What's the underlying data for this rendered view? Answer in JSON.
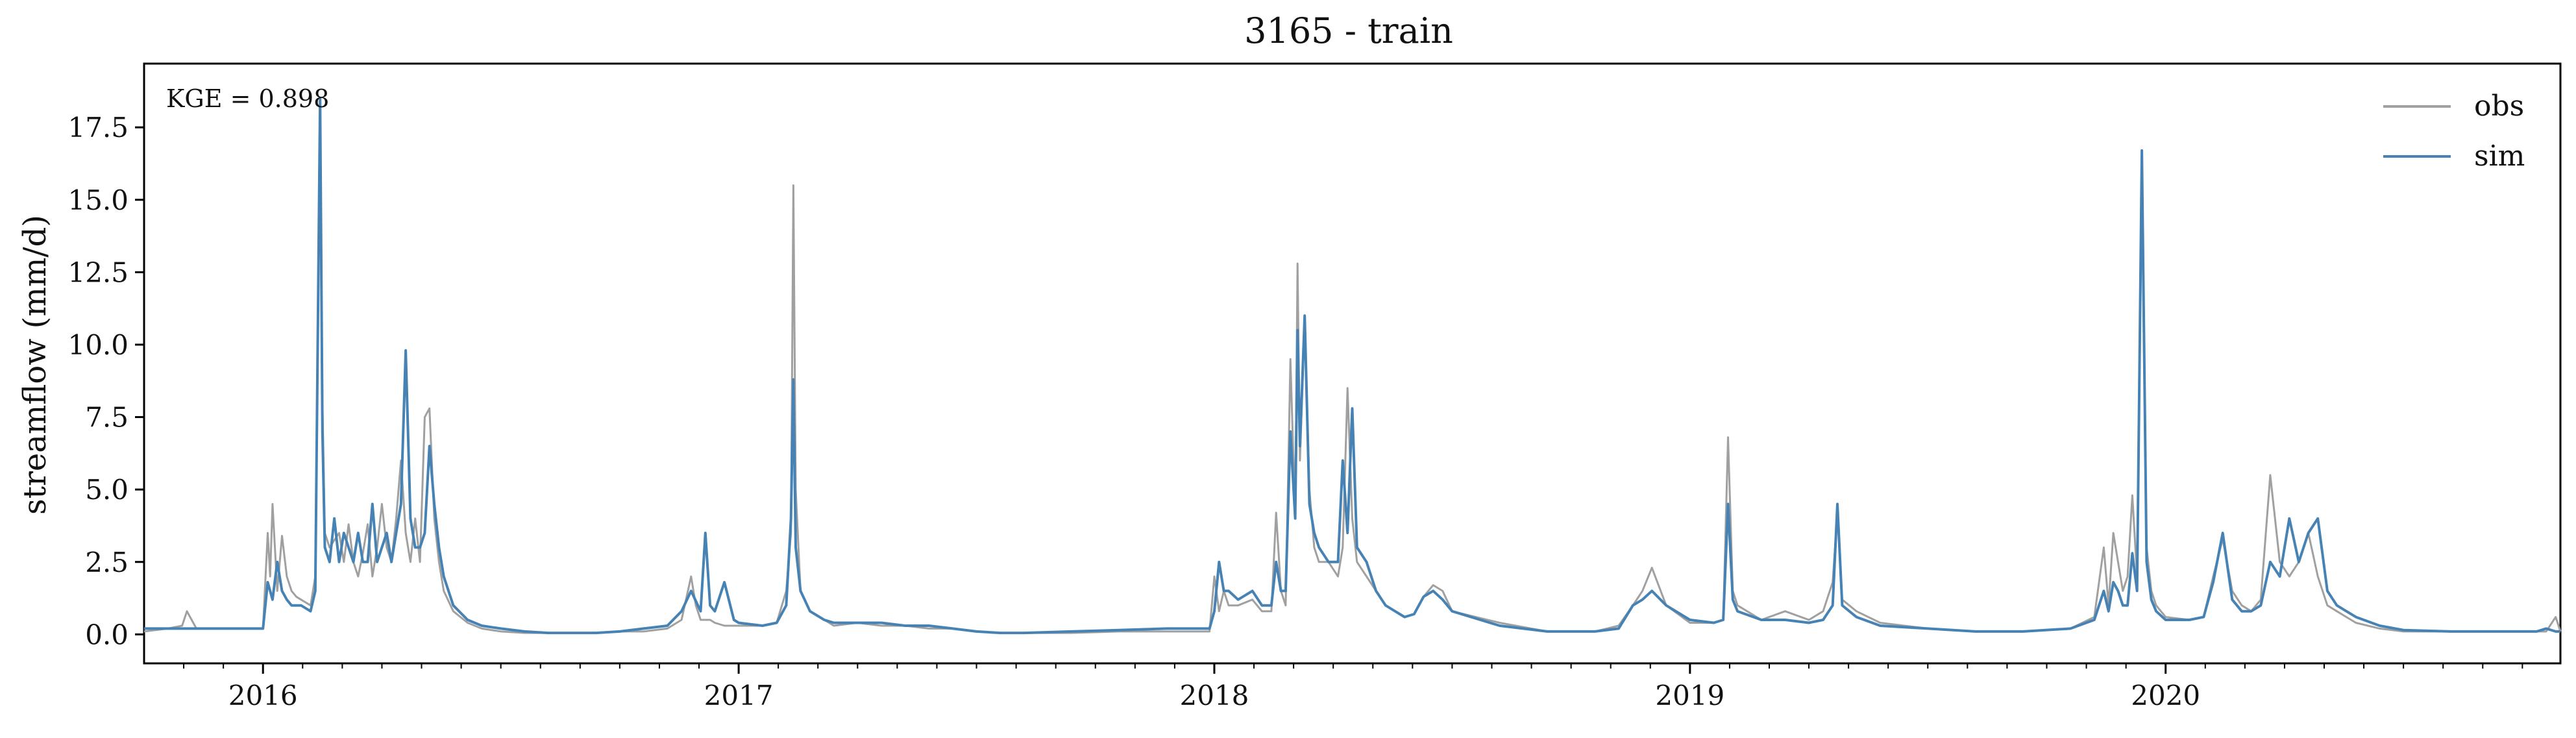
{
  "chart_data": {
    "type": "line",
    "title": "3165 - train",
    "xlabel": "",
    "ylabel": "streamflow (mm/d)",
    "annotation": "KGE = 0.898",
    "xlim": [
      2015.75,
      2020.83
    ],
    "ylim": [
      -1.0,
      19.7
    ],
    "yticks": [
      0.0,
      2.5,
      5.0,
      7.5,
      10.0,
      12.5,
      15.0,
      17.5
    ],
    "ytick_labels": [
      "0.0",
      "2.5",
      "5.0",
      "7.5",
      "10.0",
      "12.5",
      "15.0",
      "17.5"
    ],
    "xticks": [
      2016.0,
      2017.0,
      2018.0,
      2019.0,
      2020.0
    ],
    "xtick_labels": [
      "2016",
      "2017",
      "2018",
      "2019",
      "2020"
    ],
    "legend": {
      "placement": "top-right",
      "entries": [
        "obs",
        "sim"
      ]
    },
    "colors": {
      "obs": "#a0a0a0",
      "sim": "#4682b4"
    },
    "series": [
      {
        "name": "obs",
        "color": "#a0a0a0",
        "x": [
          2015.75,
          2015.8,
          2015.83,
          2015.84,
          2015.86,
          2015.9,
          2015.95,
          2016.0,
          2016.01,
          2016.015,
          2016.02,
          2016.03,
          2016.04,
          2016.05,
          2016.06,
          2016.07,
          2016.08,
          2016.1,
          2016.11,
          2016.12,
          2016.125,
          2016.13,
          2016.14,
          2016.16,
          2016.17,
          2016.18,
          2016.19,
          2016.2,
          2016.21,
          2016.22,
          2016.23,
          2016.24,
          2016.25,
          2016.26,
          2016.27,
          2016.28,
          2016.29,
          2016.3,
          2016.31,
          2016.32,
          2016.33,
          2016.34,
          2016.35,
          2016.36,
          2016.37,
          2016.38,
          2016.4,
          2016.43,
          2016.46,
          2016.5,
          2016.55,
          2016.6,
          2016.7,
          2016.75,
          2016.8,
          2016.85,
          2016.88,
          2016.9,
          2016.91,
          2016.92,
          2016.94,
          2016.95,
          2016.97,
          2016.99,
          2017.0,
          2017.05,
          2017.08,
          2017.1,
          2017.11,
          2017.115,
          2017.12,
          2017.13,
          2017.15,
          2017.18,
          2017.2,
          2017.25,
          2017.3,
          2017.35,
          2017.4,
          2017.45,
          2017.5,
          2017.55,
          2017.6,
          2017.7,
          2017.8,
          2017.9,
          2017.95,
          2017.99,
          2018.0,
          2018.01,
          2018.02,
          2018.03,
          2018.05,
          2018.08,
          2018.1,
          2018.12,
          2018.13,
          2018.14,
          2018.15,
          2018.16,
          2018.17,
          2018.175,
          2018.18,
          2018.19,
          2018.2,
          2018.21,
          2018.22,
          2018.24,
          2018.26,
          2018.27,
          2018.28,
          2018.29,
          2018.3,
          2018.32,
          2018.34,
          2018.36,
          2018.38,
          2018.4,
          2018.42,
          2018.44,
          2018.46,
          2018.48,
          2018.5,
          2018.6,
          2018.7,
          2018.8,
          2018.85,
          2018.88,
          2018.9,
          2018.92,
          2018.95,
          2019.0,
          2019.05,
          2019.07,
          2019.08,
          2019.09,
          2019.1,
          2019.15,
          2019.2,
          2019.25,
          2019.28,
          2019.3,
          2019.31,
          2019.32,
          2019.35,
          2019.4,
          2019.5,
          2019.6,
          2019.7,
          2019.8,
          2019.85,
          2019.87,
          2019.88,
          2019.89,
          2019.9,
          2019.91,
          2019.92,
          2019.93,
          2019.94,
          2019.95,
          2019.96,
          2019.97,
          2019.98,
          2020.0,
          2020.05,
          2020.08,
          2020.1,
          2020.12,
          2020.14,
          2020.16,
          2020.18,
          2020.2,
          2020.22,
          2020.24,
          2020.26,
          2020.28,
          2020.3,
          2020.32,
          2020.34,
          2020.36,
          2020.38,
          2020.4,
          2020.45,
          2020.5,
          2020.6,
          2020.7,
          2020.78,
          2020.8,
          2020.82,
          2020.83
        ],
        "y": [
          0.1,
          0.2,
          0.3,
          0.8,
          0.2,
          0.2,
          0.2,
          0.2,
          3.5,
          2.0,
          4.5,
          1.5,
          3.4,
          2.0,
          1.5,
          1.3,
          1.2,
          1.0,
          2.0,
          17.5,
          8.0,
          3.5,
          3.0,
          3.5,
          2.5,
          3.8,
          2.5,
          2.0,
          2.8,
          3.8,
          2.0,
          3.0,
          4.5,
          3.0,
          2.5,
          4.0,
          6.0,
          3.5,
          2.5,
          4.0,
          2.5,
          7.5,
          7.8,
          4.0,
          2.5,
          1.5,
          0.8,
          0.4,
          0.2,
          0.1,
          0.05,
          0.05,
          0.05,
          0.1,
          0.1,
          0.2,
          0.5,
          2.0,
          1.0,
          0.5,
          0.5,
          0.4,
          0.3,
          0.3,
          0.3,
          0.3,
          0.4,
          1.5,
          3.5,
          15.5,
          5.0,
          1.5,
          0.8,
          0.5,
          0.3,
          0.4,
          0.3,
          0.3,
          0.2,
          0.2,
          0.1,
          0.05,
          0.05,
          0.05,
          0.1,
          0.1,
          0.1,
          0.1,
          2.0,
          0.8,
          1.5,
          1.0,
          1.0,
          1.2,
          0.8,
          0.8,
          4.2,
          1.5,
          1.0,
          9.5,
          4.0,
          12.8,
          6.0,
          10.8,
          5.0,
          3.0,
          2.5,
          2.5,
          2.0,
          3.0,
          8.5,
          4.0,
          2.5,
          2.0,
          1.5,
          1.0,
          0.8,
          0.6,
          0.7,
          1.3,
          1.7,
          1.5,
          0.8,
          0.4,
          0.1,
          0.1,
          0.3,
          1.0,
          1.5,
          2.3,
          1.0,
          0.4,
          0.4,
          0.5,
          6.8,
          1.5,
          1.0,
          0.5,
          0.8,
          0.5,
          0.8,
          1.8,
          4.2,
          1.2,
          0.8,
          0.4,
          0.2,
          0.1,
          0.1,
          0.2,
          0.6,
          3.0,
          1.0,
          3.5,
          2.5,
          1.5,
          2.0,
          4.8,
          2.0,
          15.5,
          3.0,
          1.5,
          1.0,
          0.6,
          0.5,
          0.6,
          2.0,
          3.3,
          1.5,
          1.0,
          0.8,
          1.2,
          5.5,
          2.5,
          2.0,
          2.5,
          3.5,
          2.0,
          1.0,
          0.8,
          0.6,
          0.4,
          0.2,
          0.1,
          0.1,
          0.1,
          0.1,
          0.1,
          0.6,
          0.1
        ]
      },
      {
        "name": "sim",
        "color": "#4682b4",
        "x": [
          2015.75,
          2015.8,
          2015.85,
          2015.9,
          2015.95,
          2016.0,
          2016.01,
          2016.02,
          2016.03,
          2016.04,
          2016.05,
          2016.06,
          2016.08,
          2016.1,
          2016.11,
          2016.12,
          2016.125,
          2016.13,
          2016.14,
          2016.15,
          2016.16,
          2016.17,
          2016.18,
          2016.19,
          2016.2,
          2016.21,
          2016.22,
          2016.23,
          2016.24,
          2016.25,
          2016.26,
          2016.27,
          2016.28,
          2016.29,
          2016.3,
          2016.31,
          2016.32,
          2016.33,
          2016.34,
          2016.35,
          2016.36,
          2016.37,
          2016.38,
          2016.4,
          2016.43,
          2016.46,
          2016.5,
          2016.55,
          2016.6,
          2016.7,
          2016.75,
          2016.8,
          2016.85,
          2016.88,
          2016.9,
          2016.92,
          2016.93,
          2016.94,
          2016.95,
          2016.97,
          2016.99,
          2017.0,
          2017.05,
          2017.08,
          2017.1,
          2017.11,
          2017.115,
          2017.12,
          2017.13,
          2017.15,
          2017.18,
          2017.2,
          2017.25,
          2017.3,
          2017.35,
          2017.4,
          2017.45,
          2017.5,
          2017.55,
          2017.6,
          2017.7,
          2017.8,
          2017.9,
          2017.95,
          2017.99,
          2018.0,
          2018.01,
          2018.02,
          2018.03,
          2018.05,
          2018.08,
          2018.1,
          2018.12,
          2018.13,
          2018.14,
          2018.15,
          2018.16,
          2018.17,
          2018.175,
          2018.18,
          2018.19,
          2018.2,
          2018.21,
          2018.22,
          2018.24,
          2018.26,
          2018.27,
          2018.28,
          2018.29,
          2018.3,
          2018.32,
          2018.34,
          2018.36,
          2018.38,
          2018.4,
          2018.42,
          2018.44,
          2018.46,
          2018.48,
          2018.5,
          2018.6,
          2018.7,
          2018.8,
          2018.85,
          2018.88,
          2018.9,
          2018.92,
          2018.95,
          2019.0,
          2019.05,
          2019.07,
          2019.08,
          2019.09,
          2019.1,
          2019.15,
          2019.2,
          2019.25,
          2019.28,
          2019.3,
          2019.31,
          2019.32,
          2019.35,
          2019.4,
          2019.5,
          2019.6,
          2019.7,
          2019.8,
          2019.85,
          2019.87,
          2019.88,
          2019.89,
          2019.9,
          2019.91,
          2019.92,
          2019.93,
          2019.94,
          2019.95,
          2019.96,
          2019.97,
          2019.98,
          2020.0,
          2020.05,
          2020.08,
          2020.1,
          2020.12,
          2020.14,
          2020.16,
          2020.18,
          2020.2,
          2020.22,
          2020.24,
          2020.26,
          2020.28,
          2020.3,
          2020.32,
          2020.34,
          2020.36,
          2020.38,
          2020.4,
          2020.45,
          2020.5,
          2020.6,
          2020.7,
          2020.78,
          2020.8,
          2020.82,
          2020.83
        ],
        "y": [
          0.2,
          0.2,
          0.2,
          0.2,
          0.2,
          0.2,
          1.8,
          1.2,
          2.5,
          1.5,
          1.2,
          1.0,
          1.0,
          0.8,
          1.5,
          18.5,
          7.0,
          3.0,
          2.5,
          4.0,
          2.5,
          3.5,
          3.0,
          2.5,
          3.5,
          2.5,
          2.5,
          4.5,
          2.5,
          3.0,
          3.5,
          2.5,
          3.5,
          4.5,
          9.8,
          4.0,
          3.0,
          3.0,
          3.5,
          6.5,
          4.5,
          3.0,
          2.0,
          1.0,
          0.5,
          0.3,
          0.2,
          0.1,
          0.05,
          0.05,
          0.1,
          0.2,
          0.3,
          0.8,
          1.5,
          0.8,
          3.5,
          1.0,
          0.8,
          1.8,
          0.5,
          0.4,
          0.3,
          0.4,
          1.0,
          4.0,
          8.8,
          3.0,
          1.5,
          0.8,
          0.5,
          0.4,
          0.4,
          0.4,
          0.3,
          0.3,
          0.2,
          0.1,
          0.05,
          0.05,
          0.1,
          0.15,
          0.2,
          0.2,
          0.2,
          0.8,
          2.5,
          1.5,
          1.5,
          1.2,
          1.5,
          1.0,
          1.0,
          2.5,
          1.5,
          1.5,
          7.0,
          4.0,
          10.5,
          6.5,
          11.0,
          4.5,
          3.5,
          3.0,
          2.5,
          2.5,
          6.0,
          3.5,
          7.8,
          3.0,
          2.5,
          1.5,
          1.0,
          0.8,
          0.6,
          0.7,
          1.3,
          1.5,
          1.2,
          0.8,
          0.3,
          0.1,
          0.1,
          0.2,
          1.0,
          1.2,
          1.5,
          1.0,
          0.5,
          0.4,
          0.5,
          4.5,
          1.2,
          0.8,
          0.5,
          0.5,
          0.4,
          0.5,
          1.0,
          4.5,
          1.0,
          0.6,
          0.3,
          0.2,
          0.1,
          0.1,
          0.2,
          0.5,
          1.5,
          0.8,
          1.8,
          1.5,
          1.0,
          1.0,
          2.8,
          1.5,
          16.7,
          2.5,
          1.2,
          0.8,
          0.5,
          0.5,
          0.6,
          1.8,
          3.5,
          1.2,
          0.8,
          0.8,
          1.0,
          2.5,
          2.0,
          4.0,
          2.5,
          3.5,
          4.0,
          1.5,
          1.0,
          0.8,
          0.6,
          0.3,
          0.15,
          0.1,
          0.1,
          0.1,
          0.2,
          0.1,
          0.1
        ]
      }
    ]
  }
}
